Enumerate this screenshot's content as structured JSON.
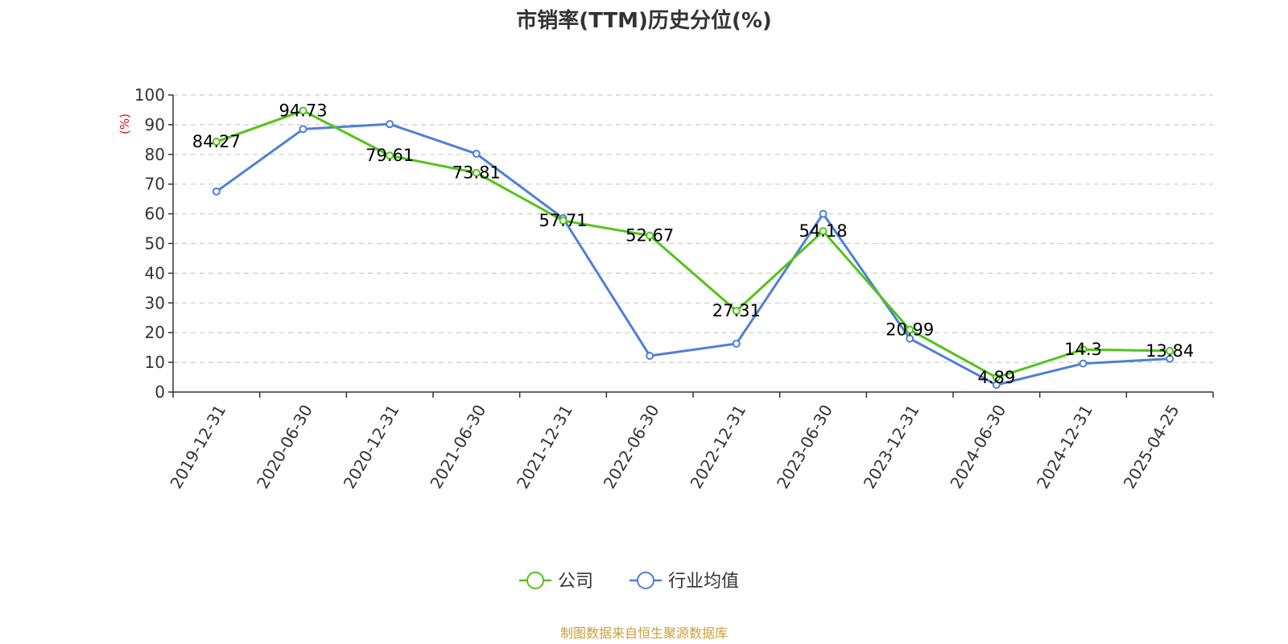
{
  "chart_data": {
    "type": "line",
    "title": "市销率(TTM)历史分位(%)",
    "ylabel": "(%)",
    "ylim": [
      0,
      100
    ],
    "yticks": [
      0,
      10,
      20,
      30,
      40,
      50,
      60,
      70,
      80,
      90,
      100
    ],
    "grid": "horizontal dashed",
    "legend_position": "bottom-center",
    "categories": [
      "2019-12-31",
      "2020-06-30",
      "2020-12-31",
      "2021-06-30",
      "2021-12-31",
      "2022-06-30",
      "2022-12-31",
      "2023-06-30",
      "2023-12-31",
      "2024-06-30",
      "2024-12-31",
      "2025-04-25"
    ],
    "series": [
      {
        "name": "公司",
        "color": "#52c41a",
        "values": [
          84.27,
          94.73,
          79.61,
          73.81,
          57.71,
          52.67,
          27.31,
          54.18,
          20.99,
          4.89,
          14.3,
          13.84
        ],
        "labels": [
          "84.27",
          "94.73",
          "79.61",
          "73.81",
          "57.71",
          "52.67",
          "27.31",
          "54.18",
          "20.99",
          "4.89",
          "14.3",
          "13.84"
        ]
      },
      {
        "name": "行业均值",
        "color": "#4e7fd9",
        "values": [
          67.5,
          88.5,
          90.2,
          80.2,
          58.5,
          12.2,
          16.3,
          60.0,
          18.0,
          2.4,
          9.6,
          11.2
        ]
      }
    ],
    "source": "制图数据来自恒生聚源数据库",
    "source_color": "#c9a03a",
    "ylabel_color": "#e01010"
  }
}
